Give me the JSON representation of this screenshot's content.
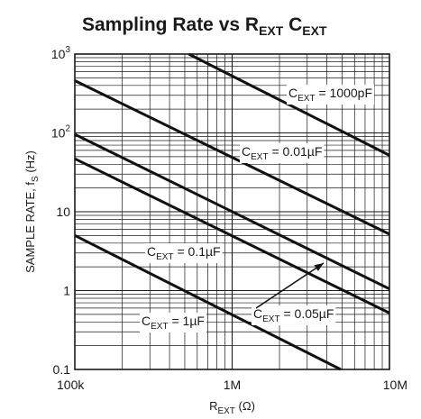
{
  "chart_data": {
    "type": "line",
    "title": {
      "main": "Sampling Rate vs R",
      "sub1": "EXT",
      "mid": " C",
      "sub2": "EXT"
    },
    "xlabel": {
      "main": "R",
      "sub": "EXT",
      "rest": " (Ω)"
    },
    "ylabel": {
      "main": "SAMPLE RATE, f",
      "sub": "S",
      "rest": " (Hz)"
    },
    "x_scale": "log",
    "y_scale": "log",
    "xlim": [
      100000,
      10000000
    ],
    "ylim": [
      0.1,
      1000
    ],
    "x_ticks": [
      {
        "value": 100000,
        "label": "100k"
      },
      {
        "value": 1000000,
        "label": "1M"
      },
      {
        "value": 10000000,
        "label": "10M"
      }
    ],
    "y_ticks": [
      {
        "value": 0.1,
        "label": "0.1"
      },
      {
        "value": 1,
        "label": "1"
      },
      {
        "value": 10,
        "label": "10"
      },
      {
        "value": 100,
        "label": "10",
        "sup": "2"
      },
      {
        "value": 1000,
        "label": "10",
        "sup": "3"
      }
    ],
    "grid": true,
    "series": [
      {
        "name": "C_EXT = 1000pF",
        "x": [
          530000,
          10000000
        ],
        "y": [
          1000,
          52
        ]
      },
      {
        "name": "C_EXT = 0.01µF",
        "x": [
          100000,
          10000000
        ],
        "y": [
          460,
          5.2
        ]
      },
      {
        "name": "C_EXT = 0.05µF",
        "x": [
          100000,
          10000000
        ],
        "y": [
          96,
          1.05
        ]
      },
      {
        "name": "C_EXT = 0.1µF",
        "x": [
          100000,
          10000000
        ],
        "y": [
          47,
          0.52
        ]
      },
      {
        "name": "C_EXT = 1µF",
        "x": [
          100000,
          4900000
        ],
        "y": [
          5,
          0.1
        ]
      }
    ],
    "annotations": [
      {
        "series": 0,
        "main": "C",
        "sub": "EXT",
        "rest": " = 1000pF"
      },
      {
        "series": 1,
        "main": "C",
        "sub": "EXT",
        "rest": " = 0.01µF"
      },
      {
        "series": 3,
        "main": "C",
        "sub": "EXT",
        "rest": " = 0.1µF"
      },
      {
        "series": 2,
        "main": "C",
        "sub": "EXT",
        "rest": " = 0.05µF",
        "arrow": true
      },
      {
        "series": 4,
        "main": "C",
        "sub": "EXT",
        "rest": " = 1µF"
      }
    ],
    "colors": {
      "line": "#111111",
      "grid": "#1a1a1a"
    }
  }
}
